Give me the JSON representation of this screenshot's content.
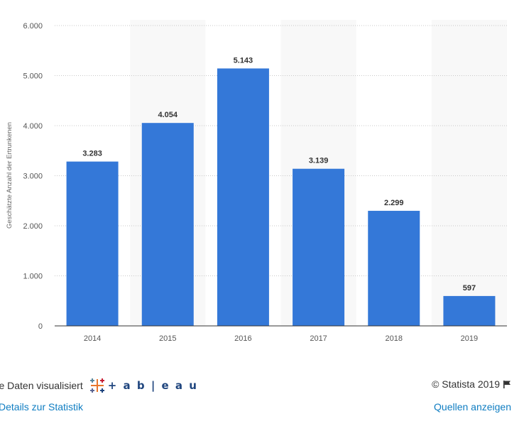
{
  "chart_data": {
    "type": "bar",
    "categories": [
      "2014",
      "2015",
      "2016",
      "2017",
      "2018",
      "2019"
    ],
    "values": [
      3283,
      4054,
      5143,
      3139,
      2299,
      597
    ],
    "value_labels": [
      "3.283",
      "4.054",
      "5.143",
      "3.139",
      "2.299",
      "597"
    ],
    "ylabel": "Geschätzte Anzahl der Ertrunkenen",
    "xlabel": "",
    "ylim": [
      0,
      6000
    ],
    "yticks": [
      0,
      1000,
      2000,
      3000,
      4000,
      5000,
      6000
    ],
    "ytick_labels": [
      "0",
      "1.000",
      "2.000",
      "3.000",
      "4.000",
      "5.000",
      "6.000"
    ],
    "grid": true,
    "bar_color": "#3478d8",
    "band_color": "#f8f8f8"
  },
  "footer": {
    "visualized_text": "hre Daten visualisiert",
    "tableau_word": "+ a b | e a u",
    "details_link": "Details zur Statistik",
    "copyright": "© Statista 2019",
    "sources_link": "Quellen anzeigen"
  }
}
